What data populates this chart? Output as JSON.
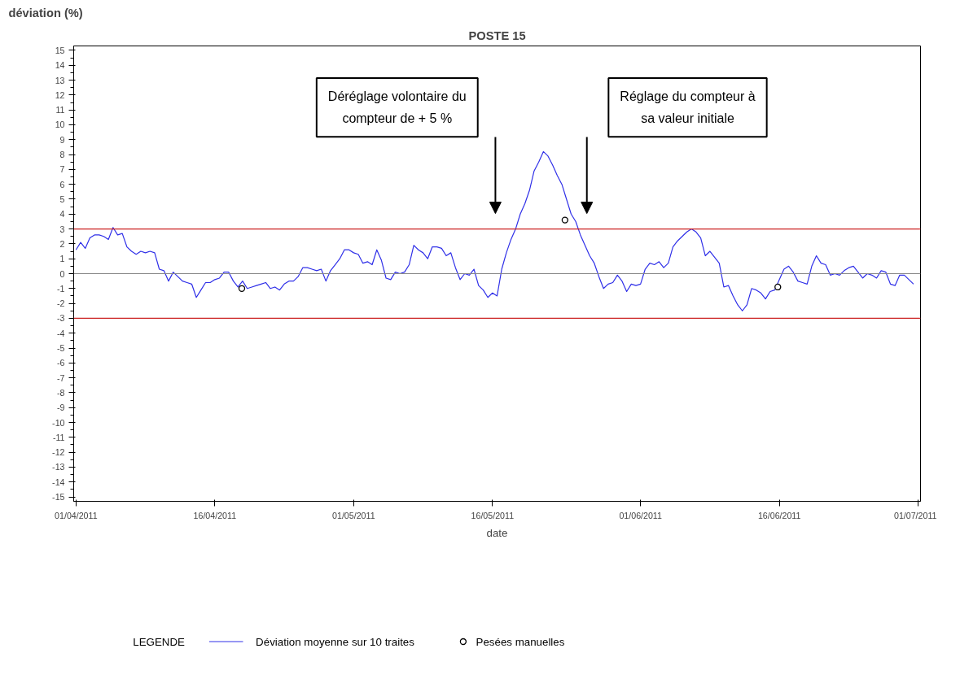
{
  "chart_data": {
    "type": "line",
    "title": "POSTE 15",
    "ylabel": "déviation (%)",
    "xlabel": "date",
    "legend_title": "LEGENDE",
    "xlim": [
      "2011-03-31T18:00",
      "2011-07-01T06:00"
    ],
    "ylim": [
      -15.3,
      15.3
    ],
    "xticks": [
      {
        "value": "2011-04-01",
        "label": "01/04/2011"
      },
      {
        "value": "2011-04-16",
        "label": "16/04/2011"
      },
      {
        "value": "2011-05-01",
        "label": "01/05/2011"
      },
      {
        "value": "2011-05-16",
        "label": "16/05/2011"
      },
      {
        "value": "2011-06-01",
        "label": "01/06/2011"
      },
      {
        "value": "2011-06-16",
        "label": "16/06/2011"
      },
      {
        "value": "2011-07-01",
        "label": "01/07/2011"
      }
    ],
    "yticks": [
      -15,
      -14,
      -13,
      -12,
      -11,
      -10,
      -9,
      -8,
      -7,
      -6,
      -5,
      -4,
      -3,
      -2,
      -1,
      0,
      1,
      2,
      3,
      4,
      5,
      6,
      7,
      8,
      9,
      10,
      11,
      12,
      13,
      14,
      15
    ],
    "grid": false,
    "legend": "bottom",
    "ref_lines": [
      {
        "axis": "y",
        "value": 3,
        "color": "#cc2222"
      },
      {
        "axis": "y",
        "value": 0,
        "color": "#888888"
      },
      {
        "axis": "y",
        "value": -3,
        "color": "#cc2222"
      }
    ],
    "annotations": [
      "Déréglage volontaire du\ncompteur de + 5 %",
      "Réglage du compteur à\nsa valeur initiale"
    ],
    "series": [
      {
        "name": "Déviation moyenne sur 10 traites",
        "color": "#3030e8",
        "x": [
          "2011-04-01T00:00",
          "2011-04-01T12:00",
          "2011-04-02T00:00",
          "2011-04-02T12:00",
          "2011-04-03T00:00",
          "2011-04-03T12:00",
          "2011-04-04T00:00",
          "2011-04-04T12:00",
          "2011-04-05T00:00",
          "2011-04-05T12:00",
          "2011-04-06T00:00",
          "2011-04-06T12:00",
          "2011-04-07T00:00",
          "2011-04-07T12:00",
          "2011-04-08T00:00",
          "2011-04-08T12:00",
          "2011-04-09T00:00",
          "2011-04-09T12:00",
          "2011-04-10T00:00",
          "2011-04-10T12:00",
          "2011-04-11T00:00",
          "2011-04-11T12:00",
          "2011-04-12T00:00",
          "2011-04-12T12:00",
          "2011-04-13T00:00",
          "2011-04-13T12:00",
          "2011-04-14T00:00",
          "2011-04-14T12:00",
          "2011-04-15T00:00",
          "2011-04-15T12:00",
          "2011-04-16T00:00",
          "2011-04-16T12:00",
          "2011-04-17T00:00",
          "2011-04-17T12:00",
          "2011-04-18T00:00",
          "2011-04-18T12:00",
          "2011-04-19T00:00",
          "2011-04-19T12:00",
          "2011-04-20T00:00",
          "2011-04-20T12:00",
          "2011-04-21T00:00",
          "2011-04-21T12:00",
          "2011-04-22T00:00",
          "2011-04-22T12:00",
          "2011-04-23T00:00",
          "2011-04-23T12:00",
          "2011-04-24T00:00",
          "2011-04-24T12:00",
          "2011-04-25T00:00",
          "2011-04-25T12:00",
          "2011-04-26T00:00",
          "2011-04-26T12:00",
          "2011-04-27T00:00",
          "2011-04-27T12:00",
          "2011-04-28T00:00",
          "2011-04-28T12:00",
          "2011-04-29T00:00",
          "2011-04-29T12:00",
          "2011-04-30T00:00",
          "2011-04-30T12:00",
          "2011-05-01T00:00",
          "2011-05-01T12:00",
          "2011-05-02T00:00",
          "2011-05-02T12:00",
          "2011-05-03T00:00",
          "2011-05-03T12:00",
          "2011-05-04T00:00",
          "2011-05-04T12:00",
          "2011-05-05T00:00",
          "2011-05-05T12:00",
          "2011-05-06T00:00",
          "2011-05-06T12:00",
          "2011-05-07T00:00",
          "2011-05-07T12:00",
          "2011-05-08T00:00",
          "2011-05-08T12:00",
          "2011-05-09T00:00",
          "2011-05-09T12:00",
          "2011-05-10T00:00",
          "2011-05-10T12:00",
          "2011-05-11T00:00",
          "2011-05-11T12:00",
          "2011-05-12T00:00",
          "2011-05-12T12:00",
          "2011-05-13T00:00",
          "2011-05-13T12:00",
          "2011-05-14T00:00",
          "2011-05-14T12:00",
          "2011-05-15T00:00",
          "2011-05-15T12:00",
          "2011-05-16T00:00",
          "2011-05-16T12:00",
          "2011-05-17T00:00",
          "2011-05-17T12:00",
          "2011-05-18T00:00",
          "2011-05-18T12:00",
          "2011-05-19T00:00",
          "2011-05-19T12:00",
          "2011-05-20T00:00",
          "2011-05-20T12:00",
          "2011-05-21T00:00",
          "2011-05-21T12:00",
          "2011-05-22T00:00",
          "2011-05-22T12:00",
          "2011-05-23T00:00",
          "2011-05-23T12:00",
          "2011-05-24T00:00",
          "2011-05-24T12:00",
          "2011-05-25T00:00",
          "2011-05-25T12:00",
          "2011-05-26T00:00",
          "2011-05-26T12:00",
          "2011-05-27T00:00",
          "2011-05-27T12:00",
          "2011-05-28T00:00",
          "2011-05-28T12:00",
          "2011-05-29T00:00",
          "2011-05-29T12:00",
          "2011-05-30T00:00",
          "2011-05-30T12:00",
          "2011-05-31T00:00",
          "2011-05-31T12:00",
          "2011-06-01T00:00",
          "2011-06-01T12:00",
          "2011-06-02T00:00",
          "2011-06-02T12:00",
          "2011-06-03T00:00",
          "2011-06-03T12:00",
          "2011-06-04T00:00",
          "2011-06-04T12:00",
          "2011-06-05T00:00",
          "2011-06-05T12:00",
          "2011-06-06T00:00",
          "2011-06-06T12:00",
          "2011-06-07T00:00",
          "2011-06-07T12:00",
          "2011-06-08T00:00",
          "2011-06-08T12:00",
          "2011-06-09T00:00",
          "2011-06-09T12:00",
          "2011-06-10T00:00",
          "2011-06-10T12:00",
          "2011-06-11T00:00",
          "2011-06-11T12:00",
          "2011-06-12T00:00",
          "2011-06-12T12:00",
          "2011-06-13T00:00",
          "2011-06-13T12:00",
          "2011-06-14T00:00",
          "2011-06-14T12:00",
          "2011-06-15T00:00",
          "2011-06-15T12:00",
          "2011-06-16T00:00",
          "2011-06-16T12:00",
          "2011-06-17T00:00",
          "2011-06-17T12:00",
          "2011-06-18T00:00",
          "2011-06-18T12:00",
          "2011-06-19T00:00",
          "2011-06-19T12:00",
          "2011-06-20T00:00",
          "2011-06-20T12:00",
          "2011-06-21T00:00",
          "2011-06-21T12:00",
          "2011-06-22T00:00",
          "2011-06-22T12:00",
          "2011-06-23T00:00",
          "2011-06-23T12:00",
          "2011-06-24T00:00",
          "2011-06-24T12:00",
          "2011-06-25T00:00",
          "2011-06-25T12:00",
          "2011-06-26T00:00",
          "2011-06-26T12:00",
          "2011-06-27T00:00",
          "2011-06-27T12:00",
          "2011-06-28T00:00",
          "2011-06-28T12:00",
          "2011-06-29T00:00",
          "2011-06-29T12:00",
          "2011-06-30T00:00",
          "2011-06-30T12:00"
        ],
        "values": [
          1.6,
          2.1,
          1.7,
          2.4,
          2.6,
          2.6,
          2.5,
          2.3,
          3.1,
          2.6,
          2.7,
          1.8,
          1.5,
          1.3,
          1.5,
          1.4,
          1.5,
          1.4,
          0.3,
          0.2,
          -0.5,
          0.1,
          -0.2,
          -0.5,
          -0.6,
          -0.7,
          -1.6,
          -1.1,
          -0.6,
          -0.6,
          -0.4,
          -0.3,
          0.1,
          0.1,
          -0.5,
          -0.9,
          -0.5,
          -1.0,
          -0.9,
          -0.8,
          -0.7,
          -0.6,
          -1.0,
          -0.9,
          -1.1,
          -0.7,
          -0.5,
          -0.5,
          -0.2,
          0.4,
          0.4,
          0.3,
          0.2,
          0.3,
          -0.5,
          0.2,
          0.6,
          1.0,
          1.6,
          1.6,
          1.4,
          1.3,
          0.7,
          0.8,
          0.6,
          1.6,
          0.9,
          -0.3,
          -0.4,
          0.1,
          0.0,
          0.1,
          0.6,
          1.9,
          1.6,
          1.4,
          1.0,
          1.8,
          1.8,
          1.7,
          1.2,
          1.4,
          0.4,
          -0.4,
          0.0,
          -0.1,
          0.3,
          -0.8,
          -1.1,
          -1.6,
          -1.3,
          -1.5,
          0.3,
          1.4,
          2.3,
          3.0,
          4.0,
          4.7,
          5.6,
          6.9,
          7.5,
          8.2,
          7.9,
          7.3,
          6.6,
          6.0,
          5.0,
          4.0,
          3.5,
          2.6,
          1.9,
          1.2,
          0.7,
          -0.2,
          -1.0,
          -0.7,
          -0.6,
          -0.1,
          -0.5,
          -1.2,
          -0.7,
          -0.8,
          -0.7,
          0.3,
          0.7,
          0.6,
          0.8,
          0.4,
          0.7,
          1.8,
          2.2,
          2.5,
          2.8,
          3.0,
          2.8,
          2.4,
          1.2,
          1.5,
          1.1,
          0.7,
          -0.9,
          -0.8,
          -1.5,
          -2.1,
          -2.5,
          -2.1,
          -1.0,
          -1.1,
          -1.3,
          -1.7,
          -1.2,
          -1.1,
          -0.4,
          0.3,
          0.5,
          0.1,
          -0.5,
          -0.6,
          -0.7,
          0.5,
          1.2,
          0.7,
          0.6,
          -0.1,
          0.0,
          -0.1,
          0.2,
          0.4,
          0.5,
          0.1,
          -0.3,
          0.0,
          -0.1,
          -0.3,
          0.2,
          0.1,
          -0.7,
          -0.8,
          -0.1,
          -0.1,
          -0.4,
          -0.7
        ]
      },
      {
        "name": "Pesées manuelles",
        "type": "scatter",
        "marker": "circle",
        "color": "#000000",
        "x": [
          "2011-04-18T22:00",
          "2011-05-23T20:00",
          "2011-06-15T20:00"
        ],
        "values": [
          -1.0,
          3.6,
          -0.9
        ]
      }
    ]
  }
}
